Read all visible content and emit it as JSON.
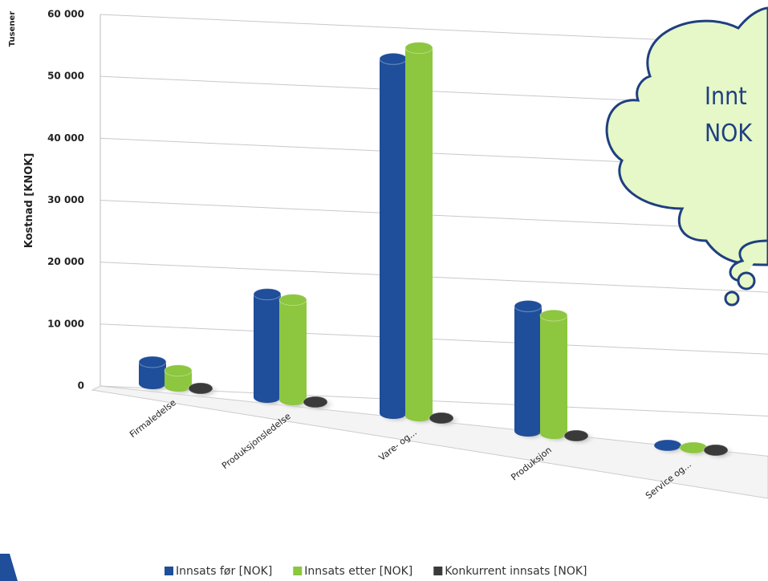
{
  "chart_data": {
    "type": "bar3d",
    "y_label_units": "Tusener",
    "ylabel": "Kostnad [KNOK]",
    "categories": [
      "Firmaledelse",
      "Produksjonsledelse",
      "Vare- og...",
      "Produksjon",
      "Service og..."
    ],
    "series": [
      {
        "name": "Innsats før [NOK]",
        "color": "#1f4e9a",
        "values": [
          3500,
          16000,
          53000,
          18000,
          0
        ]
      },
      {
        "name": "Innsats etter [NOK]",
        "color": "#8dc63f",
        "values": [
          2500,
          15500,
          55000,
          17000,
          0
        ]
      },
      {
        "name": "Konkurrent innsats [NOK]",
        "color": "#3a3a3a",
        "values": [
          0,
          0,
          0,
          0,
          0
        ]
      }
    ],
    "ylim": [
      0,
      60000
    ],
    "yticks": [
      {
        "value": 0,
        "label": "0"
      },
      {
        "value": 10000,
        "label": "10 000"
      },
      {
        "value": 20000,
        "label": "20 000"
      },
      {
        "value": 30000,
        "label": "30 000"
      },
      {
        "value": 40000,
        "label": "40 000"
      },
      {
        "value": 50000,
        "label": "50 000"
      },
      {
        "value": 60000,
        "label": "60 000"
      }
    ],
    "grid": true,
    "callout": [
      "Innt",
      "NOK"
    ]
  }
}
